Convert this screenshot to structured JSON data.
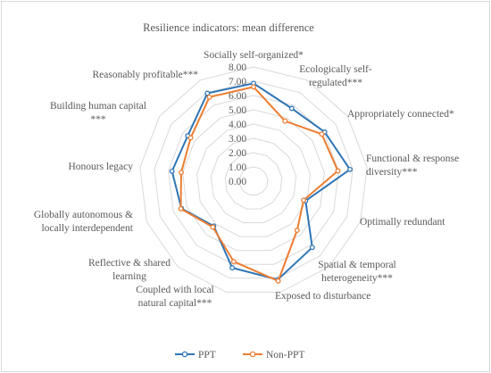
{
  "chart_data": {
    "type": "radar",
    "title": "Resilience indicators: mean difference",
    "rlim": [
      0,
      8
    ],
    "ticks": [
      "0.00",
      "1.00",
      "2.00",
      "3.00",
      "4.00",
      "5.00",
      "6.00",
      "7.00",
      "8.00"
    ],
    "categories": [
      [
        "Socially self-organized*"
      ],
      [
        "Ecologically self-",
        "regulated***"
      ],
      [
        "Appropriately connected*"
      ],
      [
        "Functional & response",
        "diversity***"
      ],
      [
        "Optimally redundant"
      ],
      [
        "Spatial & temporal",
        "heterogeneity***"
      ],
      [
        "Exposed to disturbance"
      ],
      [
        "Coupled with local",
        "natural capital***"
      ],
      [
        "Reflective & shared",
        "learning"
      ],
      [
        "Globally autonomous &",
        "locally interdependent"
      ],
      [
        "Honours legacy"
      ],
      [
        "Building human capital",
        "***"
      ],
      [
        "Reasonably profitable***"
      ]
    ],
    "series": [
      {
        "name": "PPT",
        "color": "#2e75b6",
        "values": [
          6.85,
          5.75,
          6.05,
          6.8,
          3.9,
          6.2,
          7.1,
          6.25,
          4.2,
          5.4,
          5.75,
          5.6,
          6.95
        ]
      },
      {
        "name": "Non-PPT",
        "color": "#ed7d31",
        "values": [
          6.6,
          4.75,
          5.8,
          5.95,
          3.75,
          4.6,
          7.2,
          5.8,
          4.3,
          5.45,
          5.1,
          5.35,
          6.65
        ]
      }
    ],
    "grid": true,
    "legend_position": "bottom"
  }
}
